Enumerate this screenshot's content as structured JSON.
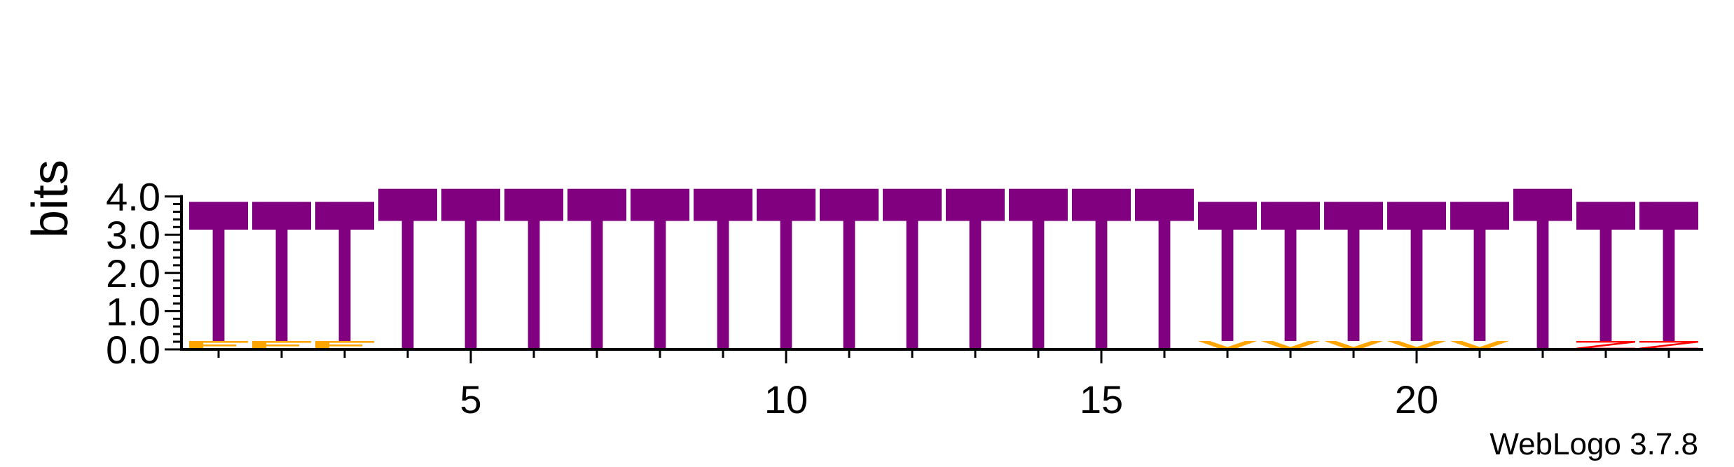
{
  "chart_data": {
    "type": "sequence-logo",
    "title": "",
    "ylabel": "bits",
    "xlabel": "",
    "ylim": [
      0,
      4.0
    ],
    "y_ticks": [
      "0.0",
      "1.0",
      "2.0",
      "3.0",
      "4.0"
    ],
    "x_ticks": [
      "5",
      "10",
      "15",
      "20"
    ],
    "positions": [
      {
        "pos": 1,
        "total": 3.86,
        "letters": [
          {
            "letter": "T",
            "height": 3.64,
            "color": "#800080"
          },
          {
            "letter": "F",
            "height": 0.22,
            "color": "#FFA500"
          }
        ]
      },
      {
        "pos": 2,
        "total": 3.86,
        "letters": [
          {
            "letter": "T",
            "height": 3.64,
            "color": "#800080"
          },
          {
            "letter": "F",
            "height": 0.22,
            "color": "#FFA500"
          }
        ]
      },
      {
        "pos": 3,
        "total": 3.86,
        "letters": [
          {
            "letter": "T",
            "height": 3.64,
            "color": "#800080"
          },
          {
            "letter": "F",
            "height": 0.22,
            "color": "#FFA500"
          }
        ]
      },
      {
        "pos": 4,
        "total": 4.2,
        "letters": [
          {
            "letter": "T",
            "height": 4.2,
            "color": "#800080"
          }
        ]
      },
      {
        "pos": 5,
        "total": 4.2,
        "letters": [
          {
            "letter": "T",
            "height": 4.2,
            "color": "#800080"
          }
        ]
      },
      {
        "pos": 6,
        "total": 4.2,
        "letters": [
          {
            "letter": "T",
            "height": 4.2,
            "color": "#800080"
          }
        ]
      },
      {
        "pos": 7,
        "total": 4.2,
        "letters": [
          {
            "letter": "T",
            "height": 4.2,
            "color": "#800080"
          }
        ]
      },
      {
        "pos": 8,
        "total": 4.2,
        "letters": [
          {
            "letter": "T",
            "height": 4.2,
            "color": "#800080"
          }
        ]
      },
      {
        "pos": 9,
        "total": 4.2,
        "letters": [
          {
            "letter": "T",
            "height": 4.2,
            "color": "#800080"
          }
        ]
      },
      {
        "pos": 10,
        "total": 4.2,
        "letters": [
          {
            "letter": "T",
            "height": 4.2,
            "color": "#800080"
          }
        ]
      },
      {
        "pos": 11,
        "total": 4.2,
        "letters": [
          {
            "letter": "T",
            "height": 4.2,
            "color": "#800080"
          }
        ]
      },
      {
        "pos": 12,
        "total": 4.2,
        "letters": [
          {
            "letter": "T",
            "height": 4.2,
            "color": "#800080"
          }
        ]
      },
      {
        "pos": 13,
        "total": 4.2,
        "letters": [
          {
            "letter": "T",
            "height": 4.2,
            "color": "#800080"
          }
        ]
      },
      {
        "pos": 14,
        "total": 4.2,
        "letters": [
          {
            "letter": "T",
            "height": 4.2,
            "color": "#800080"
          }
        ]
      },
      {
        "pos": 15,
        "total": 4.2,
        "letters": [
          {
            "letter": "T",
            "height": 4.2,
            "color": "#800080"
          }
        ]
      },
      {
        "pos": 16,
        "total": 4.2,
        "letters": [
          {
            "letter": "T",
            "height": 4.2,
            "color": "#800080"
          }
        ]
      },
      {
        "pos": 17,
        "total": 3.86,
        "letters": [
          {
            "letter": "T",
            "height": 3.64,
            "color": "#800080"
          },
          {
            "letter": "V",
            "height": 0.22,
            "color": "#FFA500"
          }
        ]
      },
      {
        "pos": 18,
        "total": 3.86,
        "letters": [
          {
            "letter": "T",
            "height": 3.64,
            "color": "#800080"
          },
          {
            "letter": "V",
            "height": 0.22,
            "color": "#FFA500"
          }
        ]
      },
      {
        "pos": 19,
        "total": 3.86,
        "letters": [
          {
            "letter": "T",
            "height": 3.64,
            "color": "#800080"
          },
          {
            "letter": "V",
            "height": 0.22,
            "color": "#FFA500"
          }
        ]
      },
      {
        "pos": 20,
        "total": 3.86,
        "letters": [
          {
            "letter": "T",
            "height": 3.64,
            "color": "#800080"
          },
          {
            "letter": "V",
            "height": 0.22,
            "color": "#FFA500"
          }
        ]
      },
      {
        "pos": 21,
        "total": 3.86,
        "letters": [
          {
            "letter": "T",
            "height": 3.64,
            "color": "#800080"
          },
          {
            "letter": "V",
            "height": 0.22,
            "color": "#FFA500"
          }
        ]
      },
      {
        "pos": 22,
        "total": 4.2,
        "letters": [
          {
            "letter": "T",
            "height": 4.2,
            "color": "#800080"
          }
        ]
      },
      {
        "pos": 23,
        "total": 3.86,
        "letters": [
          {
            "letter": "T",
            "height": 3.64,
            "color": "#800080"
          },
          {
            "letter": "Z",
            "height": 0.22,
            "color": "#FF0000"
          }
        ]
      },
      {
        "pos": 24,
        "total": 3.86,
        "letters": [
          {
            "letter": "T",
            "height": 3.64,
            "color": "#800080"
          },
          {
            "letter": "Z",
            "height": 0.22,
            "color": "#FF0000"
          }
        ]
      }
    ]
  },
  "footer": {
    "credit": "WebLogo 3.7.8"
  }
}
